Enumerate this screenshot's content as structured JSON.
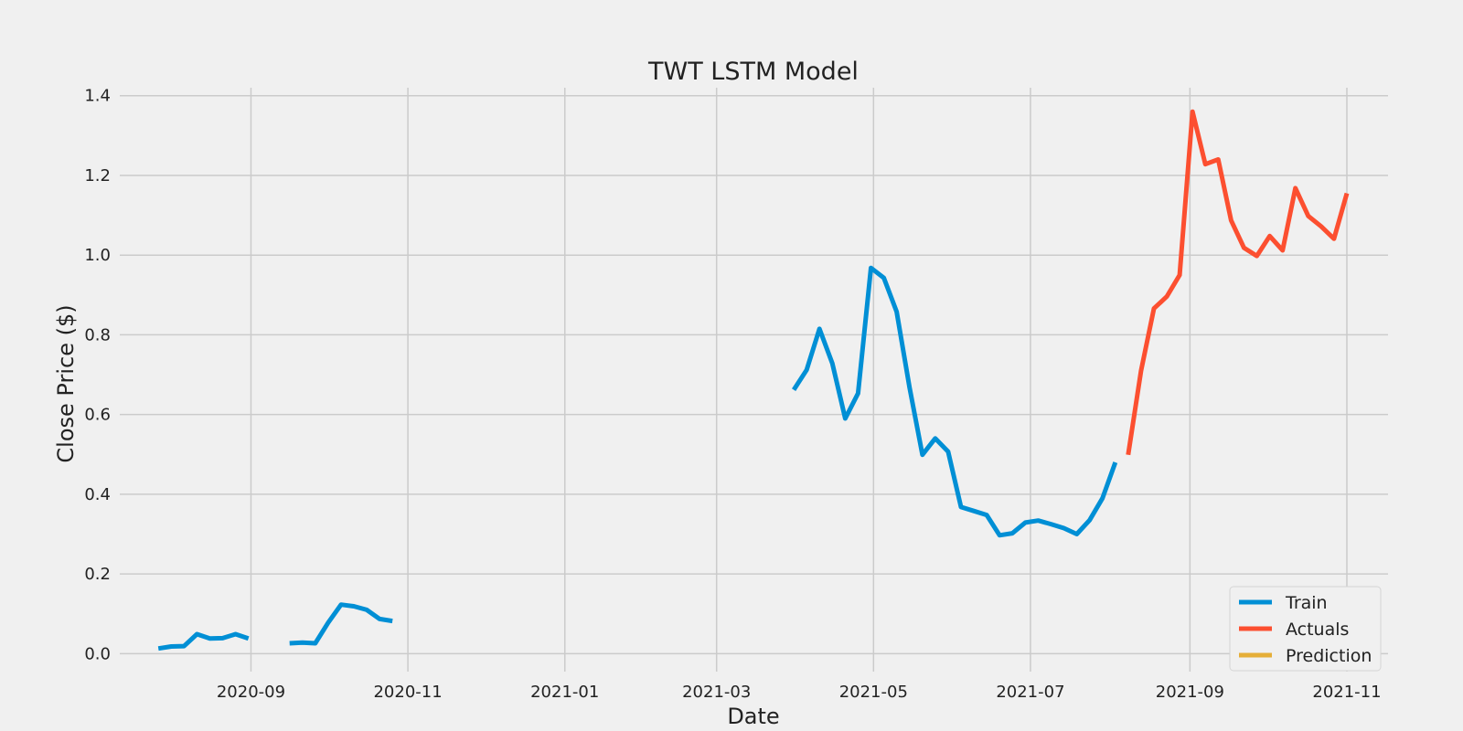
{
  "chart_data": {
    "type": "line",
    "title": "TWT LSTM Model",
    "xlabel": "Date",
    "ylabel": "Close Price ($)",
    "x_axis_type": "date",
    "xlim": [
      "2020-07-12",
      "2021-11-17"
    ],
    "ylim": [
      -0.045,
      1.42
    ],
    "grid": true,
    "legend_position": "bottom-right",
    "x_ticks": [
      {
        "date": "2020-09-01",
        "label": "2020-09"
      },
      {
        "date": "2020-11-01",
        "label": "2020-11"
      },
      {
        "date": "2021-01-01",
        "label": "2021-01"
      },
      {
        "date": "2021-03-01",
        "label": "2021-03"
      },
      {
        "date": "2021-05-01",
        "label": "2021-05"
      },
      {
        "date": "2021-07-01",
        "label": "2021-07"
      },
      {
        "date": "2021-09-01",
        "label": "2021-09"
      },
      {
        "date": "2021-11-01",
        "label": "2021-11"
      }
    ],
    "y_ticks": [
      {
        "value": 0.0,
        "label": "0.0"
      },
      {
        "value": 0.2,
        "label": "0.2"
      },
      {
        "value": 0.4,
        "label": "0.4"
      },
      {
        "value": 0.6,
        "label": "0.6"
      },
      {
        "value": 0.8,
        "label": "0.8"
      },
      {
        "value": 1.0,
        "label": "1.0"
      },
      {
        "value": 1.2,
        "label": "1.2"
      },
      {
        "value": 1.4,
        "label": "1.4"
      }
    ],
    "series": [
      {
        "name": "Train",
        "color": "#008fd5",
        "segments": [
          [
            [
              "2020-07-27",
              0.013
            ],
            [
              "2020-08-01",
              0.018
            ],
            [
              "2020-08-06",
              0.019
            ],
            [
              "2020-08-11",
              0.049
            ],
            [
              "2020-08-16",
              0.038
            ],
            [
              "2020-08-21",
              0.039
            ],
            [
              "2020-08-26",
              0.049
            ],
            [
              "2020-08-31",
              0.038
            ]
          ],
          [
            [
              "2020-09-16",
              0.026
            ],
            [
              "2020-09-21",
              0.028
            ],
            [
              "2020-09-26",
              0.026
            ],
            [
              "2020-10-01",
              0.078
            ],
            [
              "2020-10-06",
              0.123
            ],
            [
              "2020-10-11",
              0.119
            ],
            [
              "2020-10-16",
              0.11
            ],
            [
              "2020-10-21",
              0.087
            ],
            [
              "2020-10-26",
              0.082
            ]
          ],
          [
            [
              "2021-03-31",
              0.662
            ],
            [
              "2021-04-05",
              0.712
            ],
            [
              "2021-04-10",
              0.815
            ],
            [
              "2021-04-15",
              0.728
            ],
            [
              "2021-04-20",
              0.59
            ],
            [
              "2021-04-25",
              0.653
            ],
            [
              "2021-04-30",
              0.968
            ],
            [
              "2021-05-05",
              0.943
            ],
            [
              "2021-05-10",
              0.858
            ],
            [
              "2021-05-15",
              0.668
            ],
            [
              "2021-05-20",
              0.499
            ],
            [
              "2021-05-25",
              0.54
            ],
            [
              "2021-05-30",
              0.507
            ],
            [
              "2021-06-04",
              0.368
            ],
            [
              "2021-06-09",
              0.358
            ],
            [
              "2021-06-14",
              0.348
            ],
            [
              "2021-06-19",
              0.297
            ],
            [
              "2021-06-24",
              0.302
            ],
            [
              "2021-06-29",
              0.329
            ],
            [
              "2021-07-04",
              0.334
            ],
            [
              "2021-07-09",
              0.325
            ],
            [
              "2021-07-14",
              0.315
            ],
            [
              "2021-07-19",
              0.3
            ],
            [
              "2021-07-24",
              0.335
            ],
            [
              "2021-07-29",
              0.39
            ],
            [
              "2021-08-03",
              0.48
            ]
          ]
        ]
      },
      {
        "name": "Actuals",
        "color": "#fc4f30",
        "segments": [
          [
            [
              "2021-08-08",
              0.499
            ],
            [
              "2021-08-13",
              0.71
            ],
            [
              "2021-08-18",
              0.866
            ],
            [
              "2021-08-23",
              0.896
            ],
            [
              "2021-08-28",
              0.95
            ],
            [
              "2021-09-02",
              1.36
            ],
            [
              "2021-09-07",
              1.228
            ],
            [
              "2021-09-12",
              1.24
            ],
            [
              "2021-09-17",
              1.087
            ],
            [
              "2021-09-22",
              1.018
            ],
            [
              "2021-09-27",
              0.998
            ],
            [
              "2021-10-02",
              1.048
            ],
            [
              "2021-10-07",
              1.012
            ],
            [
              "2021-10-12",
              1.168
            ],
            [
              "2021-10-17",
              1.098
            ],
            [
              "2021-10-22",
              1.072
            ],
            [
              "2021-10-27",
              1.041
            ],
            [
              "2021-11-01",
              1.155
            ]
          ]
        ]
      },
      {
        "name": "Prediction",
        "color": "#e5ae38",
        "segments": []
      }
    ]
  }
}
